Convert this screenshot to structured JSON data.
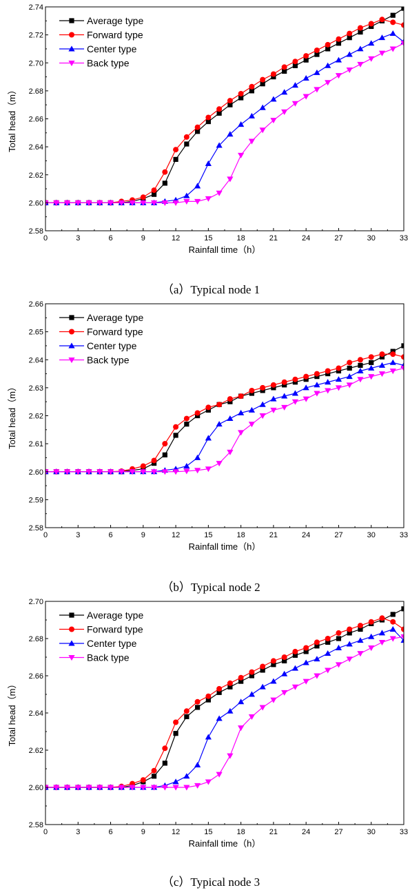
{
  "chart_data": [
    {
      "type": "line",
      "caption": "（a）Typical node 1",
      "xlabel": "Rainfall time（h）",
      "ylabel": "Total head（m）",
      "xlim": [
        0,
        33
      ],
      "ylim": [
        2.58,
        2.74
      ],
      "xticks": [
        0,
        3,
        6,
        9,
        12,
        15,
        18,
        21,
        24,
        27,
        30,
        33
      ],
      "yticks": [
        2.58,
        2.6,
        2.62,
        2.64,
        2.66,
        2.68,
        2.7,
        2.72,
        2.74
      ],
      "ytick_labels": [
        "2.58",
        "2.60",
        "2.62",
        "2.64",
        "2.66",
        "2.68",
        "2.70",
        "2.72",
        "2.74"
      ],
      "legend_position": "top-left",
      "x": [
        0,
        1,
        2,
        3,
        4,
        5,
        6,
        7,
        8,
        9,
        10,
        11,
        12,
        13,
        14,
        15,
        16,
        17,
        18,
        19,
        20,
        21,
        22,
        23,
        24,
        25,
        26,
        27,
        28,
        29,
        30,
        31,
        32,
        33
      ],
      "series": [
        {
          "name": "Average type",
          "color": "#000000",
          "marker": "square",
          "values": [
            2.6,
            2.6,
            2.6,
            2.6,
            2.6,
            2.6,
            2.6,
            2.6,
            2.601,
            2.603,
            2.606,
            2.614,
            2.631,
            2.642,
            2.651,
            2.658,
            2.664,
            2.67,
            2.675,
            2.68,
            2.685,
            2.69,
            2.694,
            2.698,
            2.702,
            2.706,
            2.71,
            2.714,
            2.718,
            2.722,
            2.726,
            2.73,
            2.734,
            2.739
          ]
        },
        {
          "name": "Forward type",
          "color": "#ff0000",
          "marker": "circle",
          "values": [
            2.6,
            2.6,
            2.6,
            2.6,
            2.6,
            2.6,
            2.6,
            2.601,
            2.602,
            2.604,
            2.609,
            2.622,
            2.638,
            2.647,
            2.654,
            2.661,
            2.667,
            2.673,
            2.678,
            2.683,
            2.688,
            2.692,
            2.697,
            2.701,
            2.705,
            2.709,
            2.713,
            2.717,
            2.721,
            2.725,
            2.728,
            2.731,
            2.729,
            2.727
          ]
        },
        {
          "name": "Center type",
          "color": "#0000ff",
          "marker": "triangle-up",
          "values": [
            2.6,
            2.6,
            2.6,
            2.6,
            2.6,
            2.6,
            2.6,
            2.6,
            2.6,
            2.6,
            2.6,
            2.601,
            2.602,
            2.605,
            2.612,
            2.628,
            2.641,
            2.649,
            2.656,
            2.662,
            2.668,
            2.674,
            2.679,
            2.684,
            2.689,
            2.693,
            2.698,
            2.702,
            2.706,
            2.71,
            2.714,
            2.718,
            2.721,
            2.715
          ]
        },
        {
          "name": "Back type",
          "color": "#ff00ff",
          "marker": "triangle-down",
          "values": [
            2.6,
            2.6,
            2.6,
            2.6,
            2.6,
            2.6,
            2.6,
            2.6,
            2.6,
            2.6,
            2.6,
            2.6,
            2.6,
            2.601,
            2.601,
            2.603,
            2.607,
            2.617,
            2.634,
            2.644,
            2.652,
            2.659,
            2.665,
            2.671,
            2.676,
            2.681,
            2.686,
            2.691,
            2.695,
            2.699,
            2.703,
            2.707,
            2.71,
            2.714
          ]
        }
      ]
    },
    {
      "type": "line",
      "caption": "（b）Typical node 2",
      "xlabel": "Rainfall time（h）",
      "ylabel": "Total head（m）",
      "xlim": [
        0,
        33
      ],
      "ylim": [
        2.58,
        2.66
      ],
      "xticks": [
        0,
        3,
        6,
        9,
        12,
        15,
        18,
        21,
        24,
        27,
        30,
        33
      ],
      "yticks": [
        2.58,
        2.59,
        2.6,
        2.61,
        2.62,
        2.63,
        2.64,
        2.65,
        2.66
      ],
      "ytick_labels": [
        "2.58",
        "2.59",
        "2.60",
        "2.61",
        "2.62",
        "2.63",
        "2.64",
        "2.65",
        "2.66"
      ],
      "legend_position": "top-left",
      "x": [
        0,
        1,
        2,
        3,
        4,
        5,
        6,
        7,
        8,
        9,
        10,
        11,
        12,
        13,
        14,
        15,
        16,
        17,
        18,
        19,
        20,
        21,
        22,
        23,
        24,
        25,
        26,
        27,
        28,
        29,
        30,
        31,
        32,
        33
      ],
      "series": [
        {
          "name": "Average type",
          "color": "#000000",
          "marker": "square",
          "values": [
            2.6,
            2.6,
            2.6,
            2.6,
            2.6,
            2.6,
            2.6,
            2.6,
            2.6005,
            2.601,
            2.603,
            2.606,
            2.613,
            2.617,
            2.62,
            2.622,
            2.624,
            2.625,
            2.627,
            2.628,
            2.629,
            2.63,
            2.631,
            2.632,
            2.633,
            2.634,
            2.635,
            2.636,
            2.637,
            2.638,
            2.639,
            2.641,
            2.643,
            2.645
          ]
        },
        {
          "name": "Forward type",
          "color": "#ff0000",
          "marker": "circle",
          "values": [
            2.6,
            2.6,
            2.6,
            2.6,
            2.6,
            2.6,
            2.6,
            2.6002,
            2.601,
            2.602,
            2.604,
            2.61,
            2.616,
            2.619,
            2.621,
            2.623,
            2.624,
            2.626,
            2.627,
            2.629,
            2.63,
            2.631,
            2.632,
            2.633,
            2.634,
            2.635,
            2.636,
            2.637,
            2.639,
            2.64,
            2.641,
            2.642,
            2.642,
            2.641
          ]
        },
        {
          "name": "Center type",
          "color": "#0000ff",
          "marker": "triangle-up",
          "values": [
            2.6,
            2.6,
            2.6,
            2.6,
            2.6,
            2.6,
            2.6,
            2.6,
            2.6,
            2.6,
            2.6,
            2.6005,
            2.601,
            2.602,
            2.605,
            2.612,
            2.617,
            2.619,
            2.621,
            2.622,
            2.624,
            2.626,
            2.627,
            2.628,
            2.63,
            2.631,
            2.632,
            2.633,
            2.634,
            2.636,
            2.637,
            2.638,
            2.639,
            2.638
          ]
        },
        {
          "name": "Back type",
          "color": "#ff00ff",
          "marker": "triangle-down",
          "values": [
            2.6,
            2.6,
            2.6,
            2.6,
            2.6,
            2.6,
            2.6,
            2.6,
            2.6,
            2.6,
            2.6,
            2.6,
            2.6,
            2.6002,
            2.6005,
            2.601,
            2.603,
            2.607,
            2.614,
            2.617,
            2.62,
            2.622,
            2.623,
            2.625,
            2.626,
            2.628,
            2.629,
            2.63,
            2.631,
            2.633,
            2.634,
            2.635,
            2.636,
            2.637
          ]
        }
      ]
    },
    {
      "type": "line",
      "caption": "（c）Typical node 3",
      "xlabel": "Rainfall time（h）",
      "ylabel": "Total head（m）",
      "xlim": [
        0,
        33
      ],
      "ylim": [
        2.58,
        2.7
      ],
      "xticks": [
        0,
        3,
        6,
        9,
        12,
        15,
        18,
        21,
        24,
        27,
        30,
        33
      ],
      "yticks": [
        2.58,
        2.6,
        2.62,
        2.64,
        2.66,
        2.68,
        2.7
      ],
      "ytick_labels": [
        "2.58",
        "2.60",
        "2.62",
        "2.64",
        "2.66",
        "2.68",
        "2.70"
      ],
      "legend_position": "top-left",
      "x": [
        0,
        1,
        2,
        3,
        4,
        5,
        6,
        7,
        8,
        9,
        10,
        11,
        12,
        13,
        14,
        15,
        16,
        17,
        18,
        19,
        20,
        21,
        22,
        23,
        24,
        25,
        26,
        27,
        28,
        29,
        30,
        31,
        32,
        33
      ],
      "series": [
        {
          "name": "Average type",
          "color": "#000000",
          "marker": "square",
          "values": [
            2.6,
            2.6,
            2.6,
            2.6,
            2.6,
            2.6,
            2.6,
            2.6,
            2.601,
            2.603,
            2.606,
            2.613,
            2.629,
            2.638,
            2.643,
            2.647,
            2.651,
            2.654,
            2.657,
            2.66,
            2.663,
            2.666,
            2.668,
            2.671,
            2.673,
            2.676,
            2.678,
            2.68,
            2.683,
            2.685,
            2.688,
            2.69,
            2.693,
            2.696
          ]
        },
        {
          "name": "Forward type",
          "color": "#ff0000",
          "marker": "circle",
          "values": [
            2.6,
            2.6,
            2.6,
            2.6,
            2.6,
            2.6,
            2.6,
            2.6005,
            2.602,
            2.604,
            2.609,
            2.621,
            2.635,
            2.641,
            2.646,
            2.649,
            2.653,
            2.656,
            2.659,
            2.662,
            2.665,
            2.668,
            2.67,
            2.673,
            2.675,
            2.678,
            2.68,
            2.683,
            2.685,
            2.687,
            2.689,
            2.691,
            2.689,
            2.685
          ]
        },
        {
          "name": "Center type",
          "color": "#0000ff",
          "marker": "triangle-up",
          "values": [
            2.6,
            2.6,
            2.6,
            2.6,
            2.6,
            2.6,
            2.6,
            2.6,
            2.6,
            2.6,
            2.6,
            2.601,
            2.603,
            2.606,
            2.612,
            2.627,
            2.637,
            2.641,
            2.646,
            2.65,
            2.654,
            2.657,
            2.661,
            2.664,
            2.667,
            2.669,
            2.672,
            2.675,
            2.677,
            2.679,
            2.681,
            2.683,
            2.685,
            2.679
          ]
        },
        {
          "name": "Back type",
          "color": "#ff00ff",
          "marker": "triangle-down",
          "values": [
            2.6,
            2.6,
            2.6,
            2.6,
            2.6,
            2.6,
            2.6,
            2.6,
            2.6,
            2.6,
            2.6,
            2.6,
            2.6,
            2.6,
            2.601,
            2.603,
            2.607,
            2.617,
            2.632,
            2.638,
            2.643,
            2.647,
            2.651,
            2.654,
            2.657,
            2.66,
            2.663,
            2.666,
            2.669,
            2.672,
            2.675,
            2.678,
            2.68,
            2.681
          ]
        }
      ]
    }
  ]
}
